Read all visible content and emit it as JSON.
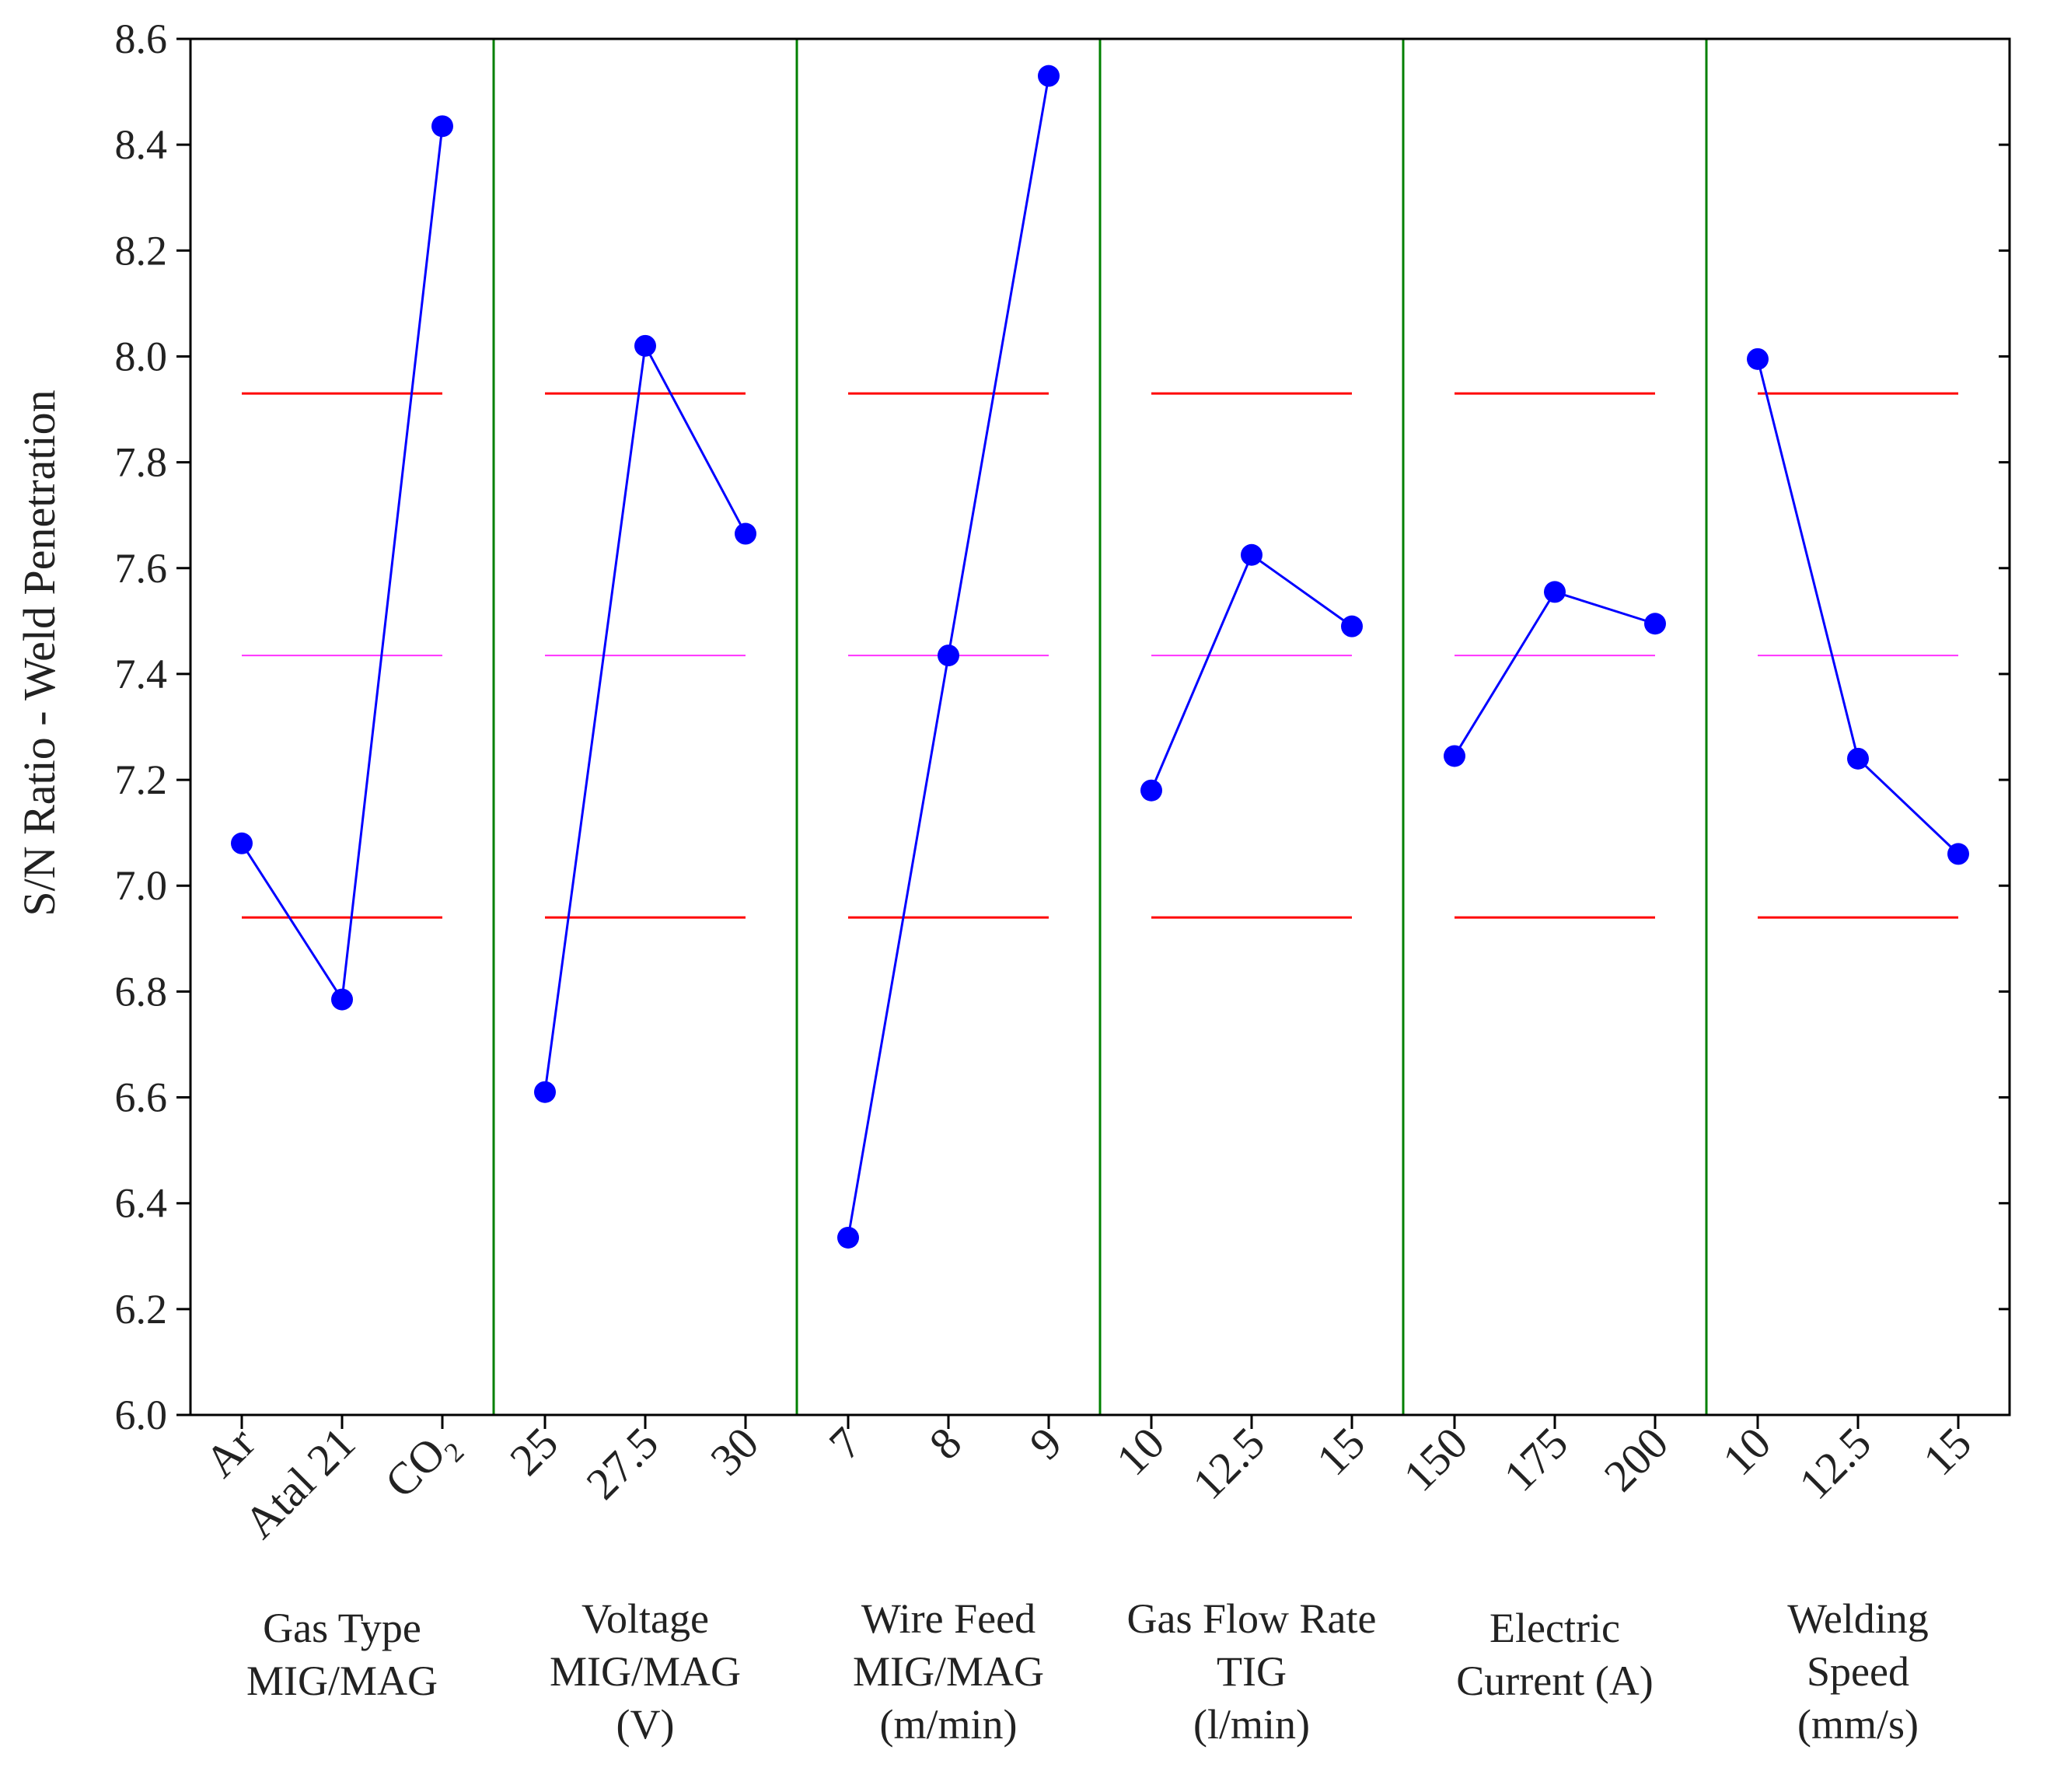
{
  "chart_data": {
    "type": "line",
    "ylabel": "S/N Ratio - Weld Penetration",
    "ylim": [
      6.0,
      8.6
    ],
    "yticks": [
      "6.0",
      "6.2",
      "6.4",
      "6.6",
      "6.8",
      "7.0",
      "7.2",
      "7.4",
      "7.6",
      "7.8",
      "8.0",
      "8.2",
      "8.4",
      "8.6"
    ],
    "reference_lines": {
      "upper": 7.93,
      "mean": 7.435,
      "lower": 6.94,
      "colors": {
        "upper": "#ff0000",
        "mean": "#ff33ff",
        "lower": "#ff0000"
      }
    },
    "colors": {
      "series": "#0000ff",
      "separator": "#008000",
      "axis": "#000000"
    },
    "factors": [
      {
        "label_lines": [
          "Gas Type",
          "MIG/MAG"
        ],
        "levels": [
          "Ar",
          "Atal 21",
          "CO"
        ],
        "level_subscripts": [
          "",
          "",
          "2"
        ],
        "values": [
          7.08,
          6.785,
          8.435
        ]
      },
      {
        "label_lines": [
          "Voltage",
          "MIG/MAG",
          "(V)"
        ],
        "levels": [
          "25",
          "27.5",
          "30"
        ],
        "level_subscripts": [
          "",
          "",
          ""
        ],
        "values": [
          6.61,
          8.02,
          7.665
        ]
      },
      {
        "label_lines": [
          "Wire Feed",
          "MIG/MAG",
          "(m/min)"
        ],
        "levels": [
          "7",
          "8",
          "9"
        ],
        "level_subscripts": [
          "",
          "",
          ""
        ],
        "values": [
          6.335,
          7.435,
          8.53
        ]
      },
      {
        "label_lines": [
          "Gas Flow Rate",
          "TIG",
          "(l/min)"
        ],
        "levels": [
          "10",
          "12.5",
          "15"
        ],
        "level_subscripts": [
          "",
          "",
          ""
        ],
        "values": [
          7.18,
          7.625,
          7.49
        ]
      },
      {
        "label_lines": [
          "Electric",
          "Current (A)"
        ],
        "levels": [
          "150",
          "175",
          "200"
        ],
        "level_subscripts": [
          "",
          "",
          ""
        ],
        "values": [
          7.245,
          7.555,
          7.495
        ]
      },
      {
        "label_lines": [
          "Welding",
          "Speed",
          "(mm/s)"
        ],
        "levels": [
          "10",
          "12.5",
          "15"
        ],
        "level_subscripts": [
          "",
          "",
          ""
        ],
        "values": [
          7.995,
          7.24,
          7.06
        ]
      }
    ]
  }
}
